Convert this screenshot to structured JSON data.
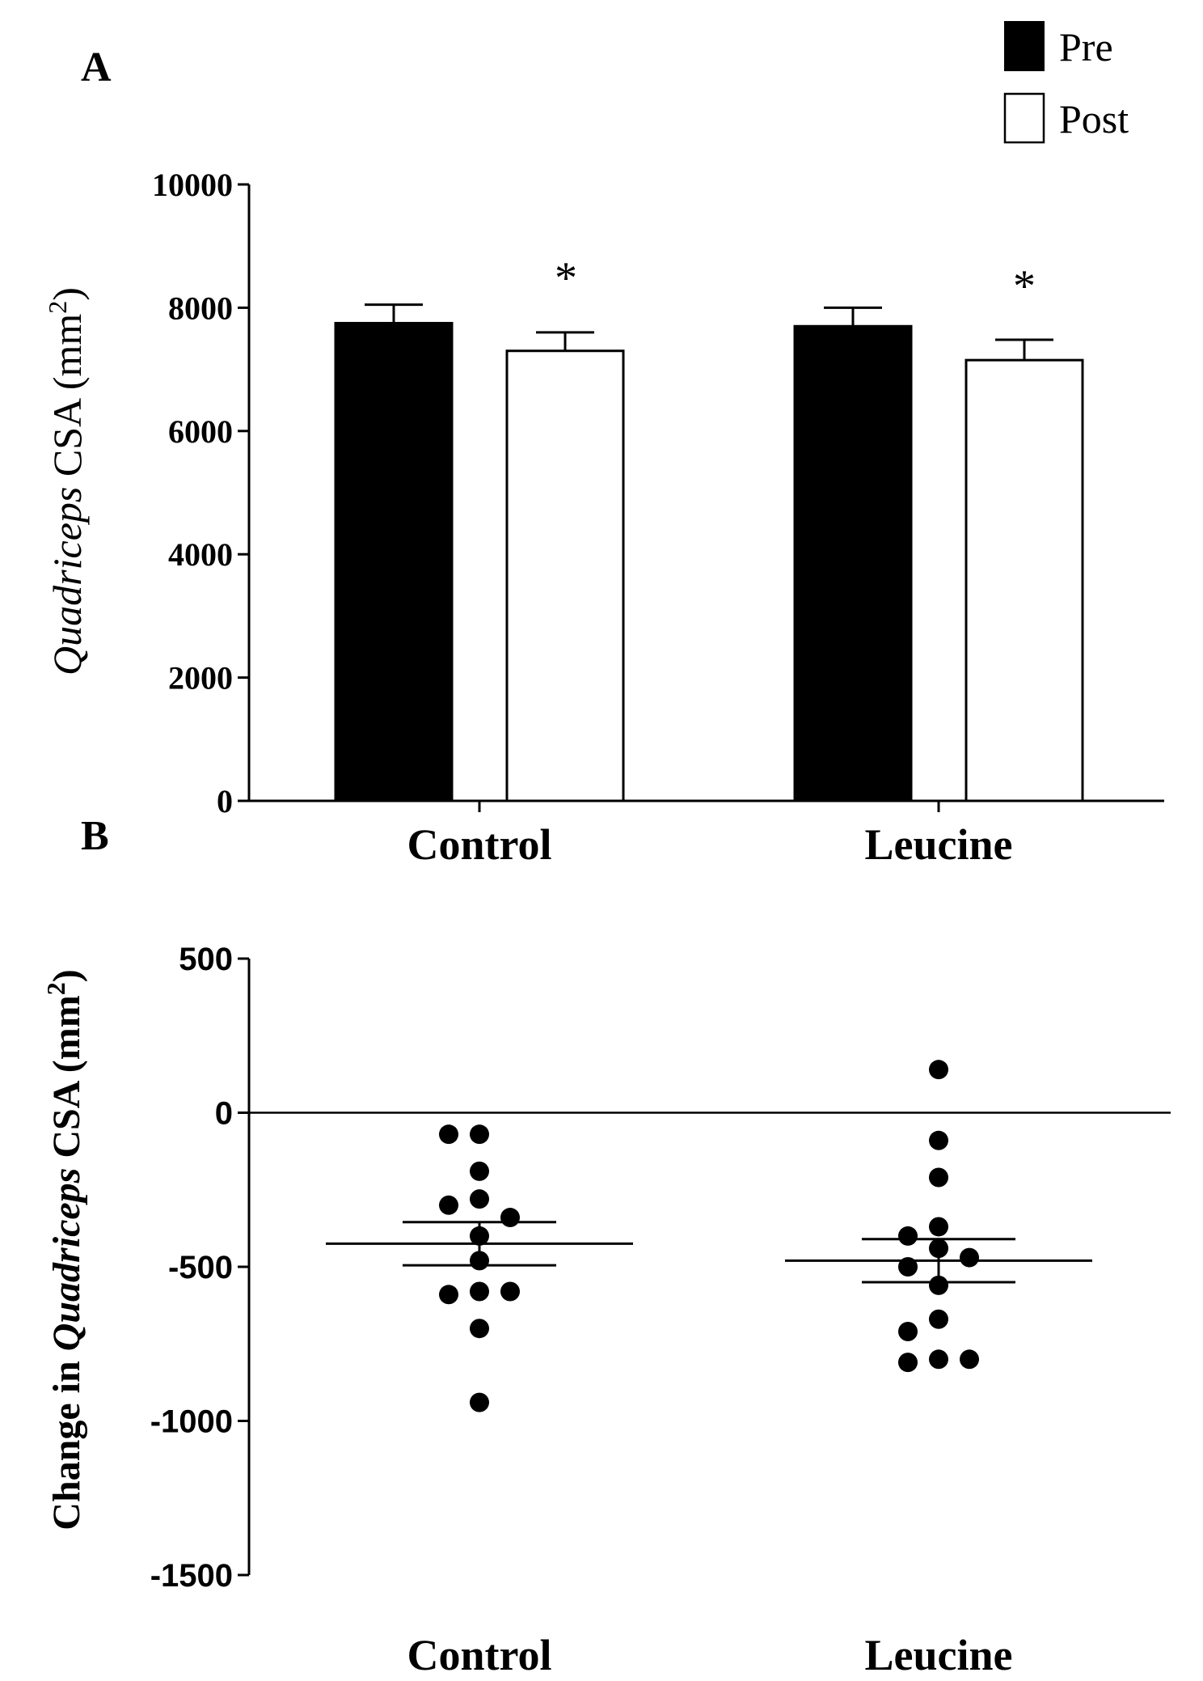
{
  "figure": {
    "legend": [
      {
        "label": "Pre",
        "color": "#000000"
      },
      {
        "label": "Post",
        "color": "#ffffff"
      }
    ]
  },
  "chart_data": [
    {
      "panel": "A",
      "type": "bar",
      "title": "",
      "xlabel": "",
      "ylabel_parts": [
        "Quadriceps",
        " CSA (mm",
        "2",
        ")"
      ],
      "categories": [
        "Control",
        "Leucine"
      ],
      "series": [
        {
          "name": "Pre",
          "values": [
            7750,
            7700
          ],
          "errors": [
            300,
            300
          ],
          "color": "#000000"
        },
        {
          "name": "Post",
          "values": [
            7300,
            7150
          ],
          "errors": [
            300,
            330
          ],
          "color": "#ffffff"
        }
      ],
      "annotations": [
        {
          "category": "Control",
          "series": "Post",
          "text": "*"
        },
        {
          "category": "Leucine",
          "series": "Post",
          "text": "*"
        }
      ],
      "yticks": [
        0,
        2000,
        4000,
        6000,
        8000,
        10000
      ],
      "ylim": [
        0,
        10000
      ]
    },
    {
      "panel": "B",
      "type": "scatter",
      "title": "",
      "xlabel": "",
      "ylabel_parts": [
        "Change in ",
        "Quadriceps",
        " CSA (mm",
        "2",
        ")"
      ],
      "categories": [
        "Control",
        "Leucine"
      ],
      "groups": [
        {
          "name": "Control",
          "points": [
            -70,
            -70,
            -190,
            -280,
            -300,
            -340,
            -400,
            -480,
            -580,
            -590,
            -580,
            -700,
            -940
          ],
          "mean": -425,
          "sem": 70
        },
        {
          "name": "Leucine",
          "points": [
            140,
            -90,
            -210,
            -370,
            -440,
            -400,
            -500,
            -470,
            -560,
            -670,
            -710,
            -800,
            -810,
            -800
          ],
          "mean": -480,
          "sem": 70
        }
      ],
      "yticks": [
        500,
        0,
        -500,
        -1000,
        -1500
      ],
      "ylim": [
        -1500,
        500
      ]
    }
  ]
}
